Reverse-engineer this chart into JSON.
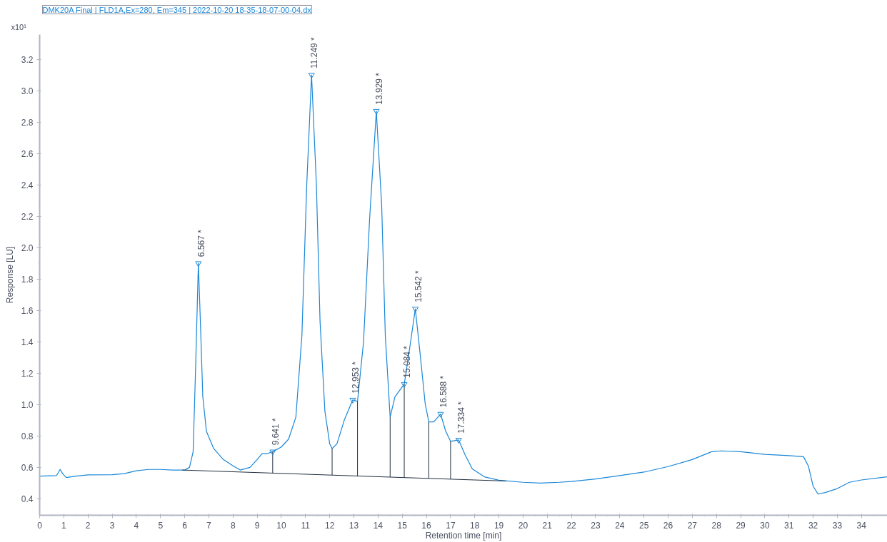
{
  "chart_data": {
    "type": "line",
    "title": "DMK20A Final | FLD1A,Ex=280, Em=345 | 2022-10-20 18-35-18-07-00-04.dx",
    "xlabel": "Retention time [min]",
    "ylabel": "Response [LU]",
    "xlim": [
      0,
      35.07
    ],
    "ylim": [
      0.295,
      3.357
    ],
    "xticks": [
      0,
      1,
      2,
      3,
      4,
      5,
      6,
      7,
      8,
      9,
      10,
      11,
      12,
      13,
      14,
      15,
      16,
      17,
      18,
      19,
      20,
      21,
      22,
      23,
      24,
      25,
      26,
      27,
      28,
      29,
      30,
      31,
      32,
      33,
      34
    ],
    "yticks": [
      {
        "value": 0.4,
        "label": "0.4"
      },
      {
        "value": 0.6,
        "label": "0.6"
      },
      {
        "value": 0.8,
        "label": "0.8"
      },
      {
        "value": 1.0,
        "label": "1.0"
      },
      {
        "value": 1.2,
        "label": "1.2"
      },
      {
        "value": 1.4,
        "label": "1.4"
      },
      {
        "value": 1.6,
        "label": "1.6"
      },
      {
        "value": 1.8,
        "label": "1.8"
      },
      {
        "value": 2.0,
        "label": "2.0"
      },
      {
        "value": 2.2,
        "label": "2.2"
      },
      {
        "value": 2.4,
        "label": "2.4"
      },
      {
        "value": 2.6,
        "label": "2.6"
      },
      {
        "value": 2.8,
        "label": "2.8"
      },
      {
        "value": 3.0,
        "label": "3.0"
      },
      {
        "value": 3.2,
        "label": "3.2"
      }
    ],
    "grid": false,
    "marker": "none",
    "line_style": "solid",
    "series": [
      {
        "color": "#1a87d8",
        "x": [
          0,
          0.7,
          0.85,
          0.95,
          1.1,
          1.5,
          2,
          3,
          3.5,
          4,
          4.5,
          5,
          5.5,
          6,
          6.2,
          6.35,
          6.45,
          6.567,
          6.65,
          6.75,
          6.9,
          7.2,
          7.6,
          8,
          8.3,
          8.7,
          9.0,
          9.2,
          9.4,
          9.641,
          10,
          10.3,
          10.6,
          10.85,
          11.05,
          11.249,
          11.45,
          11.6,
          11.8,
          12.0,
          12.1,
          12.3,
          12.6,
          12.953,
          13.15,
          13.4,
          13.65,
          13.929,
          14.15,
          14.3,
          14.5,
          14.7,
          15.084,
          15.3,
          15.542,
          15.75,
          15.95,
          16.1,
          16.3,
          16.588,
          16.8,
          17.0,
          17.334,
          17.6,
          17.9,
          18.4,
          19,
          20,
          20.7,
          21.5,
          22,
          23,
          24,
          25,
          26,
          27,
          27.8,
          28.2,
          29,
          30,
          31,
          31.6,
          31.8,
          32.0,
          32.2,
          32.5,
          33,
          33.5,
          34,
          35.07
        ],
        "values": [
          0.544,
          0.548,
          0.587,
          0.56,
          0.535,
          0.544,
          0.552,
          0.553,
          0.56,
          0.578,
          0.587,
          0.587,
          0.583,
          0.583,
          0.6,
          0.7,
          1.22,
          1.9,
          1.53,
          1.05,
          0.83,
          0.72,
          0.65,
          0.61,
          0.583,
          0.6,
          0.65,
          0.687,
          0.687,
          0.7,
          0.73,
          0.78,
          0.92,
          1.44,
          2.4,
          3.1,
          2.4,
          1.53,
          0.96,
          0.75,
          0.72,
          0.75,
          0.9,
          1.03,
          1.02,
          1.4,
          2.18,
          2.87,
          2.27,
          1.44,
          0.92,
          1.05,
          1.13,
          1.35,
          1.61,
          1.31,
          1.005,
          0.89,
          0.89,
          0.94,
          0.83,
          0.766,
          0.775,
          0.68,
          0.59,
          0.54,
          0.518,
          0.505,
          0.5,
          0.505,
          0.51,
          0.526,
          0.548,
          0.57,
          0.605,
          0.65,
          0.7,
          0.705,
          0.7,
          0.683,
          0.675,
          0.668,
          0.61,
          0.48,
          0.43,
          0.44,
          0.465,
          0.505,
          0.52,
          0.54
        ]
      },
      {
        "color": "#1f2d3d",
        "x": [
          5.9,
          19.3
        ],
        "values": [
          0.583,
          0.513
        ]
      },
      {
        "color": "#1f2d3d",
        "x": [
          9.641,
          9.641,
          null,
          12.1,
          12.1,
          null,
          13.15,
          13.15,
          null,
          14.5,
          14.5,
          null,
          15.084,
          15.084,
          null,
          16.1,
          16.1,
          null,
          17.0,
          17.0
        ],
        "values": [
          0.563,
          0.7,
          null,
          0.551,
          0.72,
          null,
          0.545,
          1.02,
          null,
          0.538,
          0.92,
          null,
          0.535,
          1.13,
          null,
          0.53,
          0.89,
          null,
          0.525,
          0.766
        ]
      }
    ],
    "annotations": [
      "x10¹",
      {
        "text": "6.567 *",
        "x": 6.567,
        "y": 1.9
      },
      {
        "text": "9.641 *",
        "x": 9.641,
        "y": 0.7
      },
      {
        "text": "11.249 *",
        "x": 11.249,
        "y": 3.1
      },
      {
        "text": "12.953 *",
        "x": 12.953,
        "y": 1.03
      },
      {
        "text": "13.929 *",
        "x": 13.929,
        "y": 2.87
      },
      {
        "text": "15.084 *",
        "x": 15.084,
        "y": 1.13
      },
      {
        "text": "15.542 *",
        "x": 15.542,
        "y": 1.61
      },
      {
        "text": "16.588 *",
        "x": 16.588,
        "y": 0.94
      },
      {
        "text": "17.334 *",
        "x": 17.334,
        "y": 0.775
      }
    ]
  }
}
